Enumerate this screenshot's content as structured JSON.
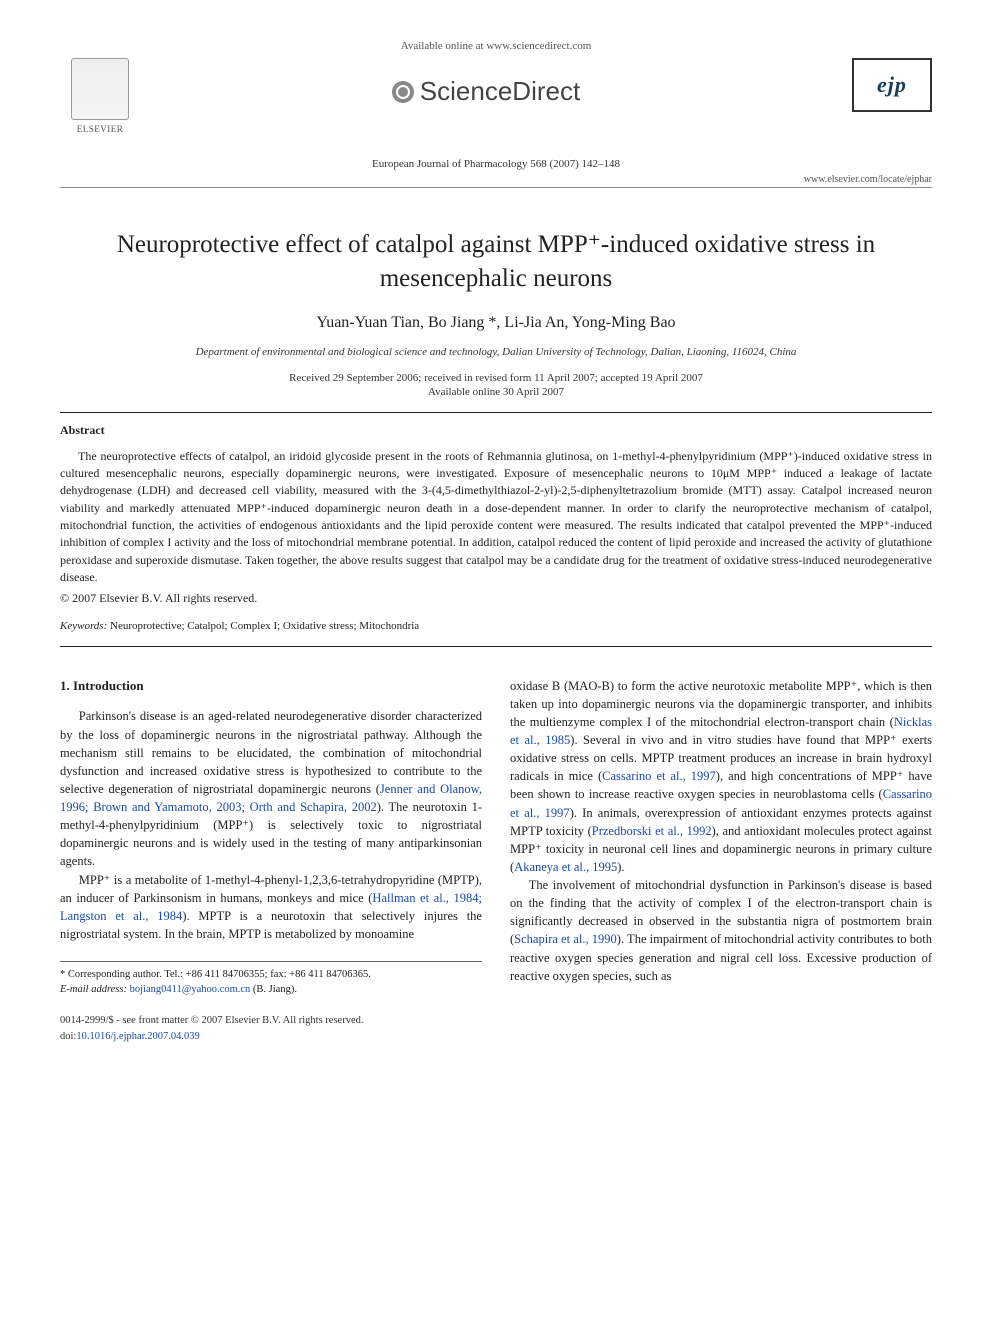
{
  "header": {
    "available": "Available online at www.sciencedirect.com",
    "sciencedirect": "ScienceDirect",
    "elsevier": "ELSEVIER",
    "journal_line": "European Journal of Pharmacology 568 (2007) 142–148",
    "www": "www.elsevier.com/locate/ejphar",
    "ejp": "ejp"
  },
  "article": {
    "title": "Neuroprotective effect of catalpol against MPP⁺-induced oxidative stress in mesencephalic neurons",
    "authors": "Yuan-Yuan Tian, Bo Jiang *, Li-Jia An, Yong-Ming Bao",
    "affiliation": "Department of environmental and biological science and technology, Dalian University of Technology, Dalian, Liaoning, 116024, China",
    "received": "Received 29 September 2006; received in revised form 11 April 2007; accepted 19 April 2007",
    "online": "Available online 30 April 2007"
  },
  "abstract": {
    "heading": "Abstract",
    "body": "The neuroprotective effects of catalpol, an iridoid glycoside present in the roots of Rehmannia glutinosa, on 1-methyl-4-phenylpyridinium (MPP⁺)-induced oxidative stress in cultured mesencephalic neurons, especially dopaminergic neurons, were investigated. Exposure of mesencephalic neurons to 10μM MPP⁺ induced a leakage of lactate dehydrogenase (LDH) and decreased cell viability, measured with the 3-(4,5-dimethylthiazol-2-yl)-2,5-diphenyltetrazolium bromide (MTT) assay. Catalpol increased neuron viability and markedly attenuated MPP⁺-induced dopaminergic neuron death in a dose-dependent manner. In order to clarify the neuroprotective mechanism of catalpol, mitochondrial function, the activities of endogenous antioxidants and the lipid peroxide content were measured. The results indicated that catalpol prevented the MPP⁺-induced inhibition of complex I activity and the loss of mitochondrial membrane potential. In addition, catalpol reduced the content of lipid peroxide and increased the activity of glutathione peroxidase and superoxide dismutase. Taken together, the above results suggest that catalpol may be a candidate drug for the treatment of oxidative stress-induced neurodegenerative disease.",
    "copyright": "© 2007 Elsevier B.V. All rights reserved."
  },
  "keywords": {
    "label": "Keywords:",
    "value": "Neuroprotective; Catalpol; Complex I; Oxidative stress; Mitochondria"
  },
  "intro": {
    "heading": "1. Introduction",
    "p1a": "Parkinson's disease is an aged-related neurodegenerative disorder characterized by the loss of dopaminergic neurons in the nigrostriatal pathway. Although the mechanism still remains to be elucidated, the combination of mitochondrial dysfunction and increased oxidative stress is hypothesized to contribute to the selective degeneration of nigrostriatal dopaminergic neurons (",
    "p1_link1": "Jenner and Olanow, 1996; Brown and Yamamoto, 2003; Orth and Schapira, 2002",
    "p1b": "). The neurotoxin 1-methyl-4-phenylpyridinium (MPP⁺) is selectively toxic to nigrostriatal dopaminergic neurons and is widely used in the testing of many antiparkinsonian agents.",
    "p2a": "MPP⁺ is a metabolite of 1-methyl-4-phenyl-1,2,3,6-tetrahydropyridine (MPTP), an inducer of Parkinsonism in humans, monkeys and mice (",
    "p2_link1": "Hallman et al., 1984; Langston et al., 1984",
    "p2b": "). MPTP is a neurotoxin that selectively injures the nigrostriatal system. In the brain, MPTP is metabolized by monoamine",
    "c2_p1a": "oxidase B (MAO-B) to form the active neurotoxic metabolite MPP⁺, which is then taken up into dopaminergic neurons via the dopaminergic transporter, and inhibits the multienzyme complex I of the mitochondrial electron-transport chain (",
    "c2_link1": "Nicklas et al., 1985",
    "c2_p1b": "). Several in vivo and in vitro studies have found that MPP⁺ exerts oxidative stress on cells. MPTP treatment produces an increase in brain hydroxyl radicals in mice (",
    "c2_link2": "Cassarino et al., 1997",
    "c2_p1c": "), and high concentrations of MPP⁺ have been shown to increase reactive oxygen species in neuroblastoma cells (",
    "c2_link3": "Cassarino et al., 1997",
    "c2_p1d": "). In animals, overexpression of antioxidant enzymes protects against MPTP toxicity (",
    "c2_link4": "Przedborski et al., 1992",
    "c2_p1e": "), and antioxidant molecules protect against MPP⁺ toxicity in neuronal cell lines and dopaminergic neurons in primary culture (",
    "c2_link5": "Akaneya et al., 1995",
    "c2_p1f": ").",
    "c2_p2a": "The involvement of mitochondrial dysfunction in Parkinson's disease is based on the finding that the activity of complex I of the electron-transport chain is significantly decreased in observed in the substantia nigra of postmortem brain (",
    "c2_link6": "Schapira et al., 1990",
    "c2_p2b": "). The impairment of mitochondrial activity contributes to both reactive oxygen species generation and nigral cell loss. Excessive production of reactive oxygen species, such as"
  },
  "footer": {
    "corr": "* Corresponding author. Tel.: +86 411 84706355; fax: +86 411 84706365.",
    "email_label": "E-mail address:",
    "email": "bojiang0411@yahoo.com.cn",
    "email_suffix": "(B. Jiang).",
    "front": "0014-2999/$ - see front matter © 2007 Elsevier B.V. All rights reserved.",
    "doi_label": "doi:",
    "doi": "10.1016/j.ejphar.2007.04.039"
  },
  "colors": {
    "link": "#1a4aa8",
    "text": "#222222",
    "rule": "#222222"
  }
}
